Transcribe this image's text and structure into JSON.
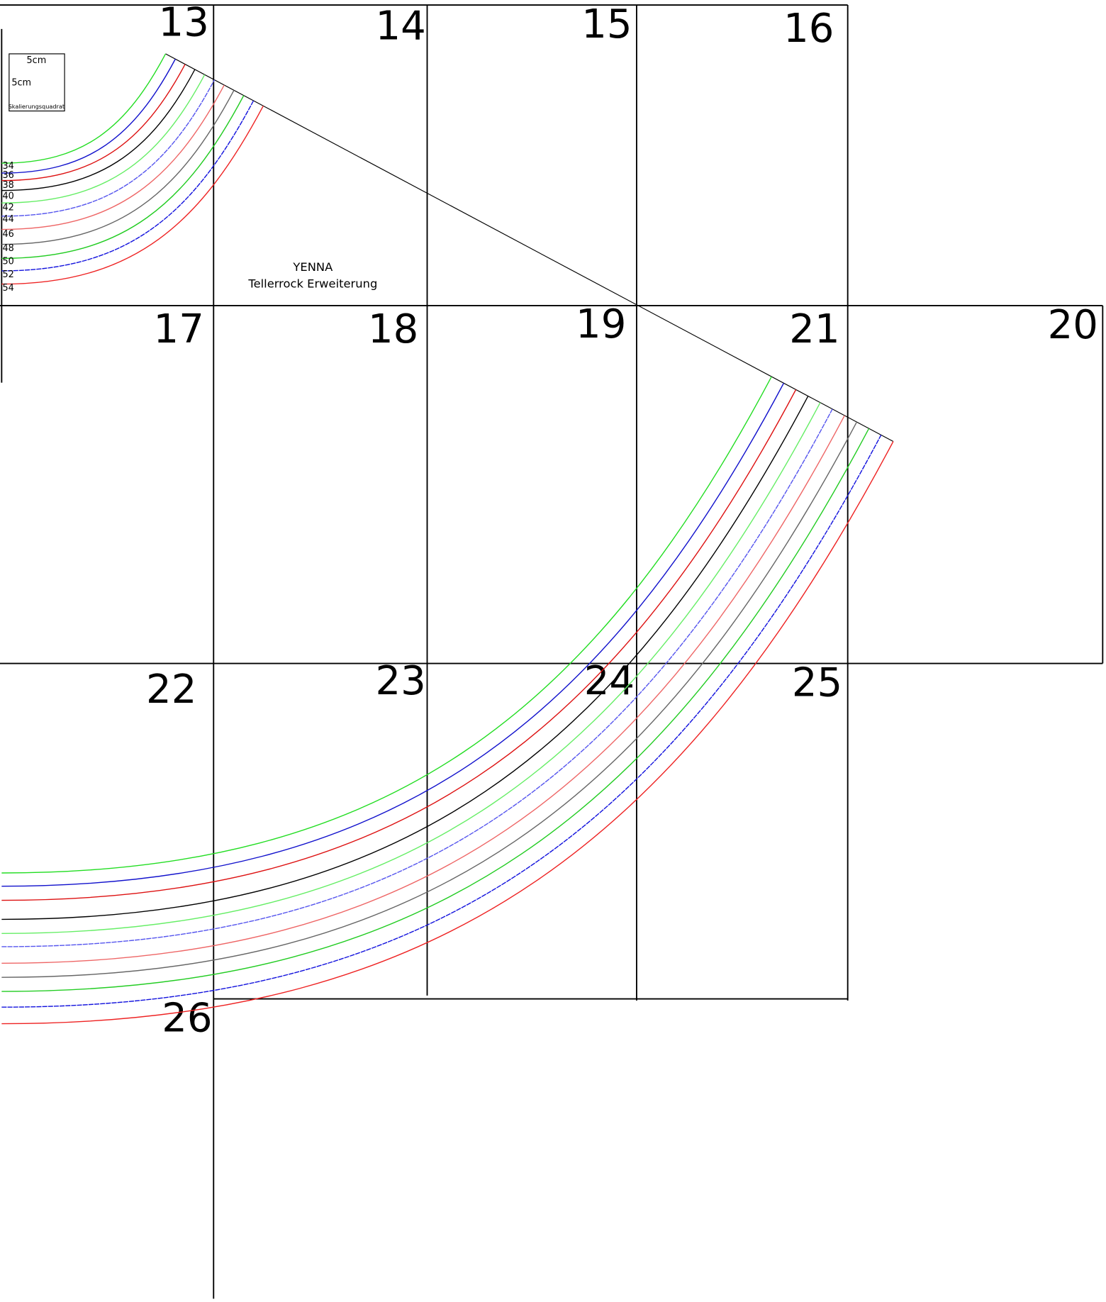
{
  "pages": [
    "13",
    "14",
    "15",
    "16",
    "17",
    "18",
    "19",
    "21",
    "20",
    "22",
    "23",
    "24",
    "25",
    "26"
  ],
  "scale_square": {
    "width_label": "5cm",
    "height_label": "5cm",
    "caption": "Skalierungsquadrat"
  },
  "pattern": {
    "name": "YENNA",
    "subtitle": "Tellerrock Erweiterung"
  },
  "sizes": [
    {
      "label": "34",
      "color": "#22dd22"
    },
    {
      "label": "36",
      "color": "#1111cc"
    },
    {
      "label": "38",
      "color": "#dd1111"
    },
    {
      "label": "40",
      "color": "#000000"
    },
    {
      "label": "42",
      "color": "#66ee66"
    },
    {
      "label": "44",
      "color": "#5555ee"
    },
    {
      "label": "46",
      "color": "#ee6666"
    },
    {
      "label": "48",
      "color": "#666666"
    },
    {
      "label": "50",
      "color": "#22cc22"
    },
    {
      "label": "52",
      "color": "#1111dd"
    },
    {
      "label": "54",
      "color": "#ee2222"
    }
  ]
}
